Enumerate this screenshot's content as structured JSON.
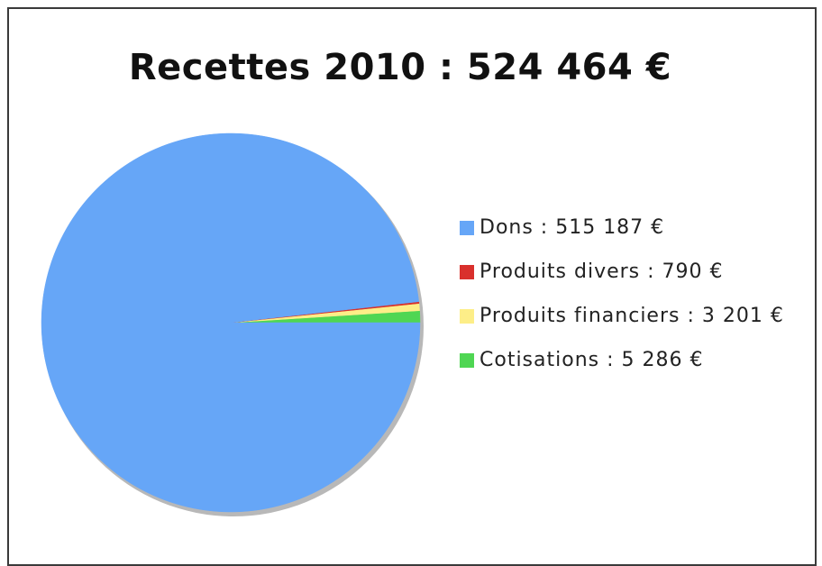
{
  "chart_data": {
    "type": "pie",
    "title": "Recettes 2010 : 524 464 €",
    "slices": [
      {
        "name": "Dons",
        "value": 515187,
        "label": "Dons : 515 187 €",
        "color": "#66a6f7"
      },
      {
        "name": "Produits divers",
        "value": 790,
        "label": "Produits divers : 790 €",
        "color": "#d9302c"
      },
      {
        "name": "Produits financiers",
        "value": 3201,
        "label": "Produits financiers : 3 201 €",
        "color": "#fdee88"
      },
      {
        "name": "Cotisations",
        "value": 5286,
        "label": "Cotisations : 5 286 €",
        "color": "#4fd653"
      }
    ],
    "legend_position": "right"
  }
}
